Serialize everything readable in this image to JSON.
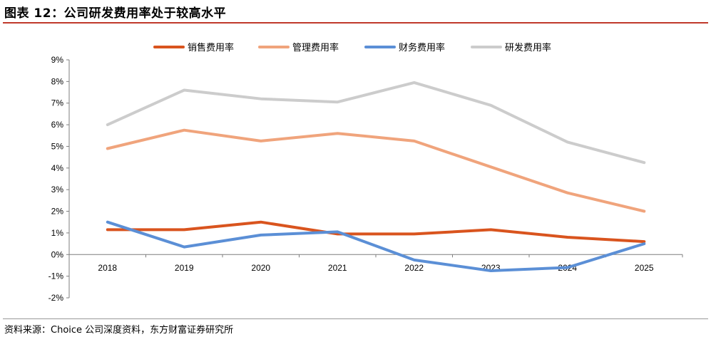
{
  "figure_title": "图表 12：公司研发费用率处于较高水平",
  "source": "资料来源：Choice 公司深度资料，东方财富证券研究所",
  "chart_data": {
    "type": "line",
    "categories": [
      "2018",
      "2019",
      "2020",
      "2021",
      "2022",
      "2023",
      "2024",
      "2025"
    ],
    "series": [
      {
        "name": "销售费用率",
        "color": "#d9541e",
        "values": [
          1.15,
          1.15,
          1.5,
          0.95,
          0.95,
          1.15,
          0.8,
          0.6
        ]
      },
      {
        "name": "管理费用率",
        "color": "#f0a47c",
        "values": [
          4.9,
          5.75,
          5.25,
          5.6,
          5.25,
          4.05,
          2.85,
          2.0
        ]
      },
      {
        "name": "财务费用率",
        "color": "#5b8fd6",
        "values": [
          1.5,
          0.35,
          0.9,
          1.05,
          -0.25,
          -0.75,
          -0.6,
          0.5
        ]
      },
      {
        "name": "研发费用率",
        "color": "#cccccc",
        "values": [
          6.0,
          7.6,
          7.2,
          7.05,
          7.95,
          6.9,
          5.2,
          4.25
        ]
      }
    ],
    "ylim": [
      -2,
      9
    ],
    "yticks": [
      "-2%",
      "-1%",
      "0%",
      "1%",
      "2%",
      "3%",
      "4%",
      "5%",
      "6%",
      "7%",
      "8%",
      "9%"
    ],
    "legend": "top",
    "grid": false
  }
}
